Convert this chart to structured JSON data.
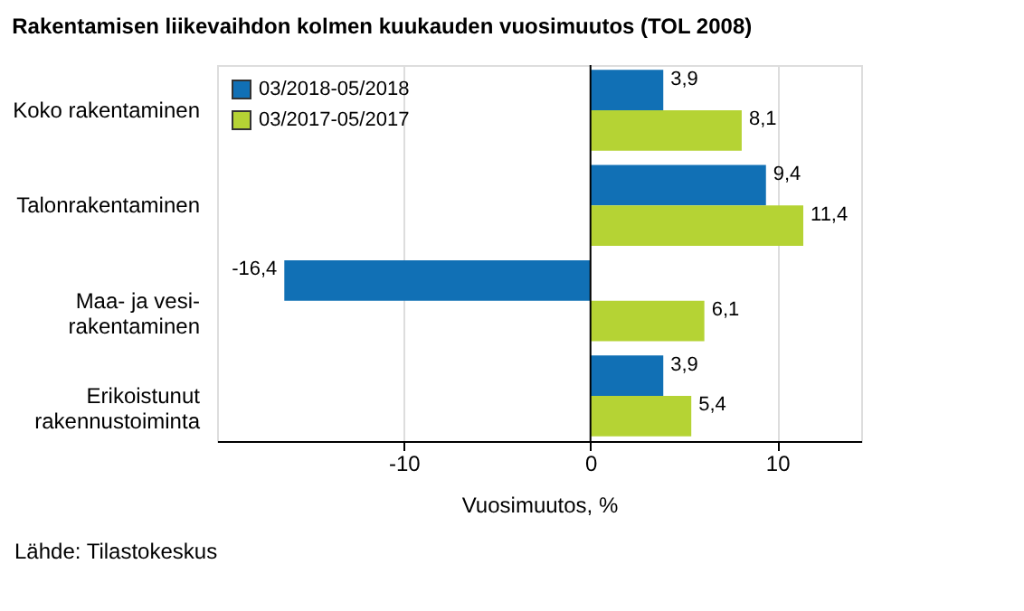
{
  "chart_data": {
    "type": "bar",
    "orientation": "horizontal",
    "title": "Rakentamisen liikevaihdon kolmen kuukauden vuosimuutos (TOL 2008)",
    "categories": [
      "Koko rakentaminen",
      "Talonrakentaminen",
      "Maa- ja vesi-\nrakentaminen",
      "Erikoistunut\nrakennustoiminta"
    ],
    "series": [
      {
        "name": "03/2018-05/2018",
        "color": "#1170b5",
        "values": [
          3.9,
          9.4,
          -16.4,
          3.9
        ],
        "value_labels": [
          "3,9",
          "9,4",
          "-16,4",
          "3,9"
        ]
      },
      {
        "name": "03/2017-05/2017",
        "color": "#b5d334",
        "values": [
          8.1,
          11.4,
          6.1,
          5.4
        ],
        "value_labels": [
          "8,1",
          "11,4",
          "6,1",
          "5,4"
        ]
      }
    ],
    "xlabel": "Vuosimuutos, %",
    "xlim": [
      -20,
      14.5
    ],
    "xticks": [
      -10,
      0,
      10
    ],
    "grid": "x",
    "legend": "top left",
    "ref_lines": [
      {
        "axis": "x",
        "value": 0,
        "label": null,
        "color": "#000000"
      }
    ],
    "annotations": [
      "Lähde: Tilastokeskus"
    ]
  }
}
